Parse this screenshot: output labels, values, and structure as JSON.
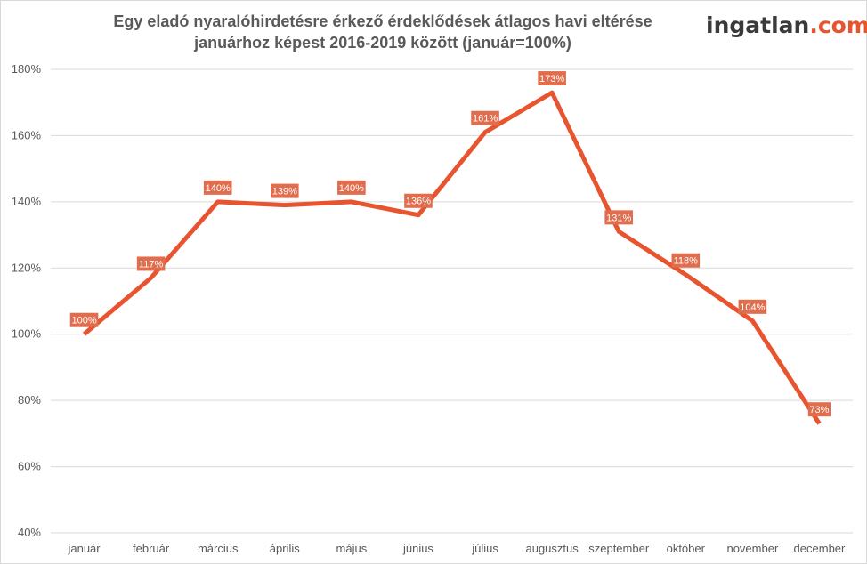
{
  "chart_data": {
    "type": "line",
    "title_lines": [
      "Egy eladó nyaralóhirdetésre érkező érdeklődések átlagos havi eltérése",
      "januárhoz képest 2016-2019 között (január=100%)"
    ],
    "logo": {
      "part1": "ingatlan",
      "part2": ".com"
    },
    "categories": [
      "január",
      "február",
      "március",
      "április",
      "május",
      "június",
      "július",
      "augusztus",
      "szeptember",
      "október",
      "november",
      "december"
    ],
    "values": [
      100,
      117,
      140,
      139,
      140,
      136,
      161,
      173,
      131,
      118,
      104,
      73
    ],
    "data_labels": [
      "100%",
      "117%",
      "140%",
      "139%",
      "140%",
      "136%",
      "161%",
      "173%",
      "131%",
      "118%",
      "104%",
      "73%"
    ],
    "ylim": [
      40,
      180
    ],
    "yticks": [
      40,
      60,
      80,
      100,
      120,
      140,
      160,
      180
    ],
    "ytick_labels": [
      "40%",
      "60%",
      "80%",
      "100%",
      "120%",
      "140%",
      "160%",
      "180%"
    ],
    "grid": true,
    "legend": "none",
    "colors": {
      "line": "#e8542f",
      "label_bg": "#e06e4e",
      "grid": "#d9d9d9",
      "text": "#595959"
    }
  }
}
